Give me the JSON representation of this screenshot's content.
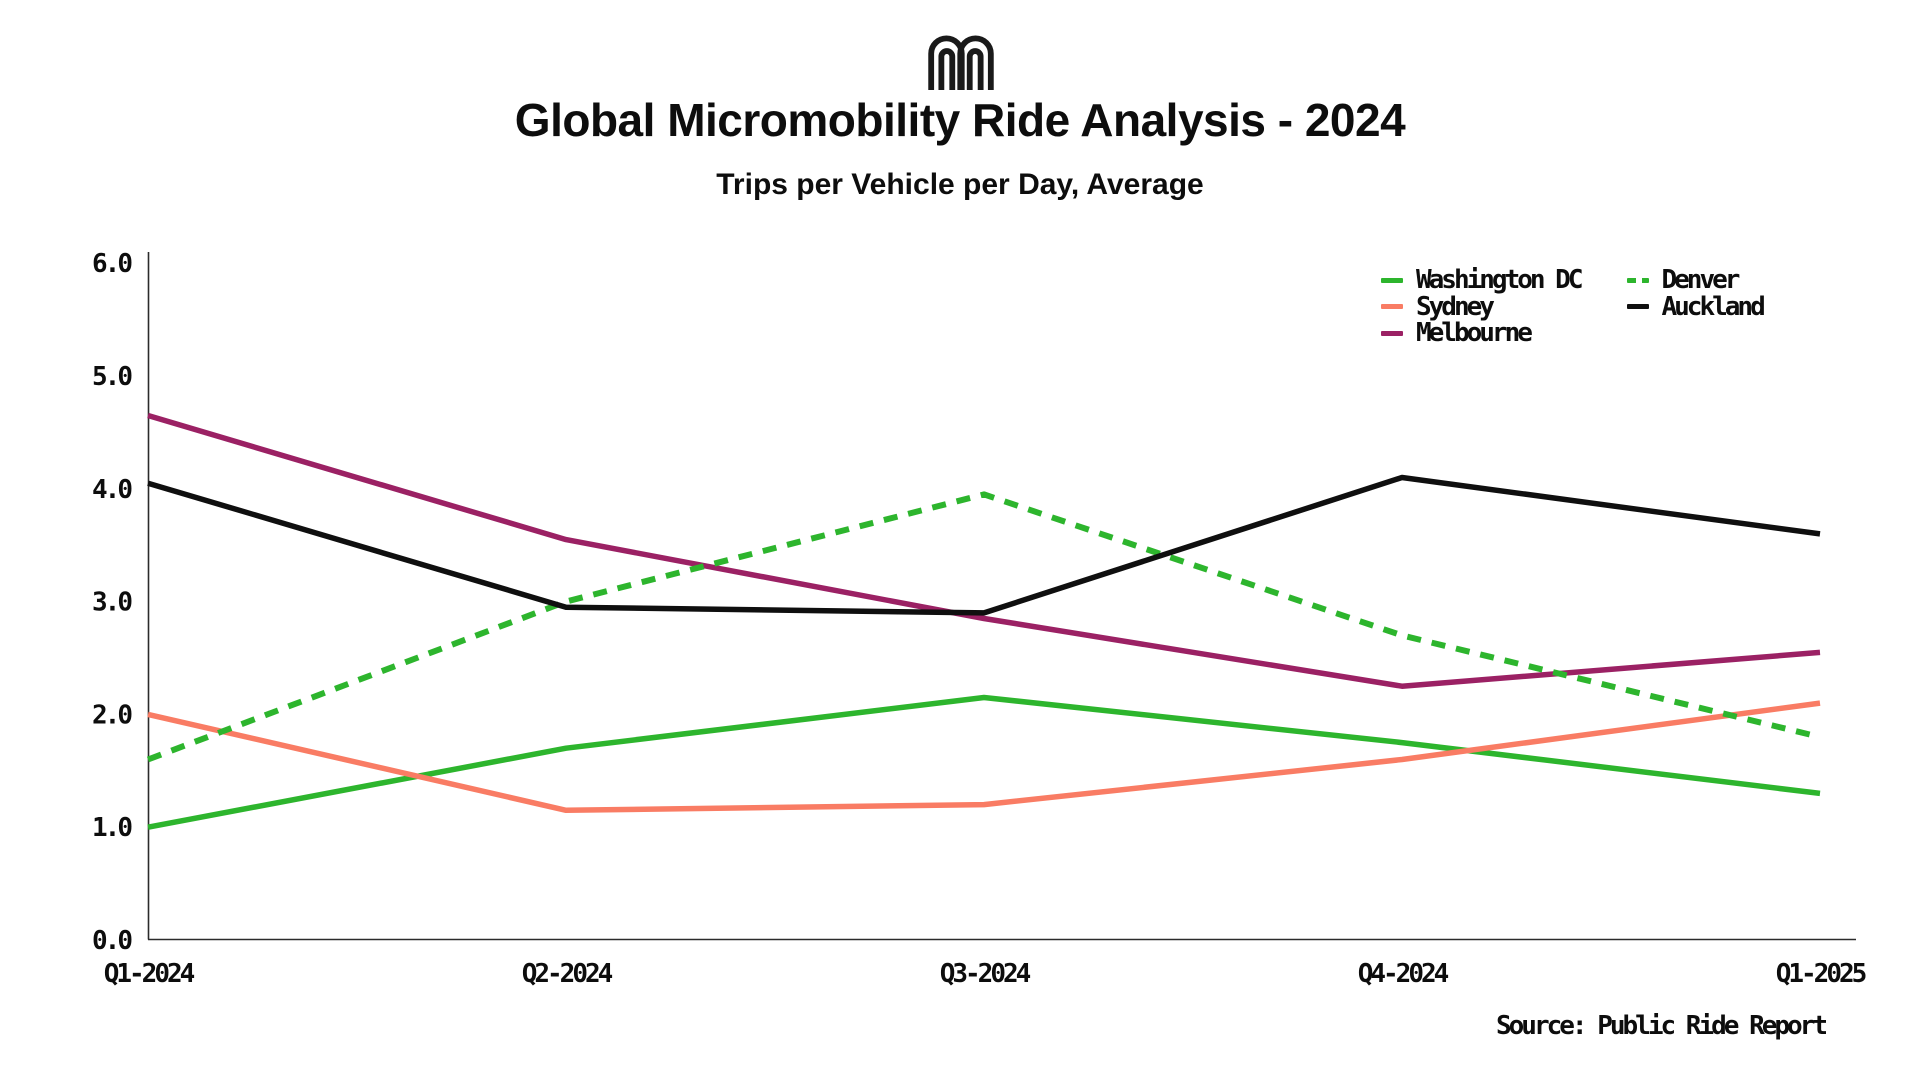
{
  "header": {
    "logo_icon": "double-arch-m-logo",
    "title": "Global Micromobility Ride Analysis - 2024",
    "subtitle": "Trips per Vehicle per Day, Average"
  },
  "footer": {
    "source": "Source: Public Ride Report"
  },
  "chart_data": {
    "type": "line",
    "title": "Global Micromobility Ride Analysis - 2024",
    "subtitle": "Trips per Vehicle per Day, Average",
    "categories": [
      "Q1-2024",
      "Q2-2024",
      "Q3-2024",
      "Q4-2024",
      "Q1-2025"
    ],
    "series": [
      {
        "name": "Washington DC",
        "color": "#2db52d",
        "style": "solid",
        "values": [
          1.0,
          1.7,
          2.15,
          1.75,
          1.3
        ]
      },
      {
        "name": "Sydney",
        "color": "#f97c64",
        "style": "solid",
        "values": [
          2.0,
          1.15,
          1.2,
          1.6,
          2.1
        ]
      },
      {
        "name": "Melbourne",
        "color": "#9b2164",
        "style": "solid",
        "values": [
          4.65,
          3.55,
          2.85,
          2.25,
          2.55
        ]
      },
      {
        "name": "Denver",
        "color": "#2db52d",
        "style": "dashed",
        "values": [
          1.6,
          3.0,
          3.95,
          2.7,
          1.8
        ]
      },
      {
        "name": "Auckland",
        "color": "#0f0f0f",
        "style": "solid",
        "values": [
          4.05,
          2.95,
          2.9,
          4.1,
          3.6
        ]
      }
    ],
    "xlabel": "",
    "ylabel": "",
    "ylim": [
      0.0,
      6.0
    ],
    "yticks": [
      "0.0",
      "1.0",
      "2.0",
      "3.0",
      "4.0",
      "5.0",
      "6.0"
    ],
    "grid": false,
    "legend_position": "upper right",
    "legend_columns": [
      [
        "Washington DC",
        "Sydney",
        "Melbourne"
      ],
      [
        "Denver",
        "Auckland"
      ]
    ],
    "axis_color": "#2b2b2b",
    "text_color": "#0d0d0d"
  }
}
